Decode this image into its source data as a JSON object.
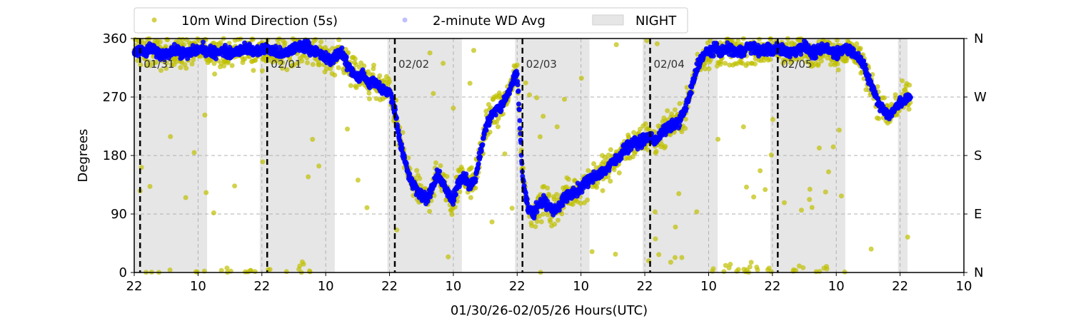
{
  "chart_data": {
    "type": "scatter",
    "title": "",
    "xlabel": "01/30/26-02/05/26  Hours(UTC)",
    "ylabel": "Degrees",
    "x_unit": "hours since 01/30 22:00 UTC",
    "xlim": [
      0,
      156
    ],
    "ylim": [
      0,
      360
    ],
    "x_ticks": [
      {
        "hour": 0,
        "label": "22"
      },
      {
        "hour": 12,
        "label": "10"
      },
      {
        "hour": 24,
        "label": "22"
      },
      {
        "hour": 36,
        "label": "10"
      },
      {
        "hour": 48,
        "label": "22"
      },
      {
        "hour": 60,
        "label": "10"
      },
      {
        "hour": 72,
        "label": "22"
      },
      {
        "hour": 84,
        "label": "10"
      },
      {
        "hour": 96,
        "label": "22"
      },
      {
        "hour": 108,
        "label": "10"
      },
      {
        "hour": 120,
        "label": "22"
      },
      {
        "hour": 132,
        "label": "10"
      },
      {
        "hour": 144,
        "label": "22"
      },
      {
        "hour": 156,
        "label": "10"
      }
    ],
    "y_ticks": [
      0,
      90,
      180,
      270,
      360
    ],
    "y_right_ticks": [
      {
        "value": 0,
        "label": "N"
      },
      {
        "value": 90,
        "label": "E"
      },
      {
        "value": 180,
        "label": "S"
      },
      {
        "value": 270,
        "label": "W"
      },
      {
        "value": 360,
        "label": "N"
      }
    ],
    "grid": true,
    "legend": {
      "placement": "top-center, above plot",
      "entries": [
        "10m Wind Direction (5s)",
        "2-minute WD Avg",
        "NIGHT"
      ]
    },
    "colors": {
      "wd5s": "#bfbf00",
      "wd2min": "#0000ff",
      "night": "#e6e6e6"
    },
    "night_periods": [
      [
        0,
        13.7
      ],
      [
        23.6,
        37.7
      ],
      [
        47.6,
        61.6
      ],
      [
        71.6,
        85.6
      ],
      [
        95.6,
        109.7
      ],
      [
        119.6,
        133.7
      ],
      [
        143.6,
        145.4
      ]
    ],
    "day_markers": [
      {
        "hour": 1.1,
        "label": "01/31"
      },
      {
        "hour": 25,
        "label": "02/01"
      },
      {
        "hour": 49,
        "label": "02/02"
      },
      {
        "hour": 73,
        "label": "02/03"
      },
      {
        "hour": 97,
        "label": "02/04"
      },
      {
        "hour": 121,
        "label": "02/05"
      }
    ],
    "series": [
      {
        "name": "2-minute WD Avg",
        "hourly_start": 0,
        "spread_deg": 12,
        "values": [
          340,
          342,
          338,
          345,
          340,
          335,
          338,
          340,
          342,
          338,
          336,
          340,
          343,
          345,
          340,
          338,
          342,
          340,
          337,
          340,
          343,
          345,
          342,
          340,
          342,
          345,
          340,
          338,
          335,
          340,
          345,
          348,
          350,
          345,
          340,
          335,
          330,
          325,
          335,
          340,
          320,
          310,
          300,
          305,
          290,
          295,
          285,
          280,
          280,
          250,
          200,
          170,
          140,
          130,
          120,
          110,
          130,
          150,
          140,
          120,
          110,
          140,
          150,
          135,
          140,
          180,
          220,
          240,
          250,
          255,
          270,
          290,
          310,
          150,
          100,
          90,
          105,
          110,
          100,
          95,
          105,
          115,
          120,
          125,
          130,
          140,
          145,
          150,
          155,
          160,
          170,
          175,
          190,
          195,
          200,
          200,
          205,
          210,
          200,
          215,
          220,
          225,
          230,
          240,
          260,
          290,
          320,
          335,
          340,
          345,
          340,
          342,
          345,
          340,
          338,
          345,
          348,
          342,
          340,
          345,
          340,
          345,
          342,
          338,
          340,
          345,
          348,
          340,
          338,
          342,
          345,
          340,
          338,
          342,
          345,
          340,
          335,
          320,
          300,
          280,
          260,
          250,
          240,
          255,
          260,
          265,
          270
        ]
      },
      {
        "name": "10m Wind Direction (5s)",
        "based_on": "2-minute WD Avg",
        "spread_deg": 35
      }
    ]
  }
}
